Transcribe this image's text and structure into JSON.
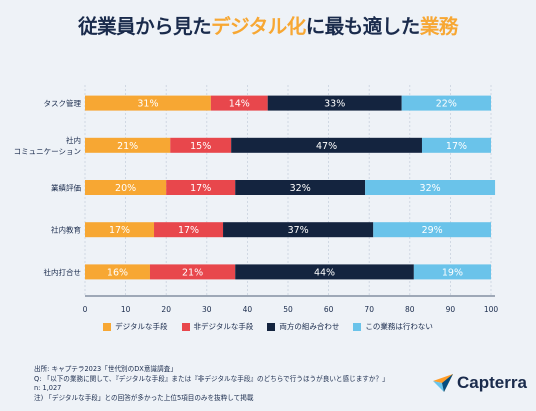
{
  "title": {
    "pre": "従業員から見た",
    "highlight": "デジタル化",
    "post": "に最も適した",
    "highlight2": "業務"
  },
  "colors": {
    "digital": "#f7a733",
    "nondigital": "#e8474c",
    "both": "#14243f",
    "none": "#6ac3ea",
    "grid": "#c9d1de"
  },
  "chart_data": {
    "type": "bar",
    "orientation": "horizontal",
    "stacked": true,
    "categories": [
      "タスク管理",
      "社内\nコミュニケーション",
      "業績評価",
      "社内教育",
      "社内打合せ"
    ],
    "series": [
      {
        "name": "デジタルな手段",
        "values": [
          31,
          21,
          20,
          17,
          16
        ]
      },
      {
        "name": "非デジタルな手段",
        "values": [
          14,
          15,
          17,
          17,
          21
        ]
      },
      {
        "name": "両方の組み合わせ",
        "values": [
          33,
          47,
          32,
          37,
          44
        ]
      },
      {
        "name": "この業務は行わない",
        "values": [
          22,
          17,
          32,
          29,
          19
        ]
      }
    ],
    "xticks": [
      "0",
      "10",
      "20",
      "30",
      "40",
      "50",
      "60",
      "70",
      "80",
      "90",
      "100"
    ],
    "xlim": [
      0,
      100
    ],
    "value_suffix": "%",
    "grid": true,
    "legend_position": "bottom"
  },
  "footer": {
    "line1": "出所: キャプテラ2023「世代別のDX意識調査」",
    "line2": "Q: 「以下の業務に関して、『デジタルな手段』または『非デジタルな手段』のどちらで行うほうが良いと感じますか？」",
    "line3": "n: 1,027",
    "line4": "注) 「デジタルな手段」との回答が多かった上位5項目のみを抜粋して掲載"
  },
  "logo": {
    "text": "Capterra"
  }
}
